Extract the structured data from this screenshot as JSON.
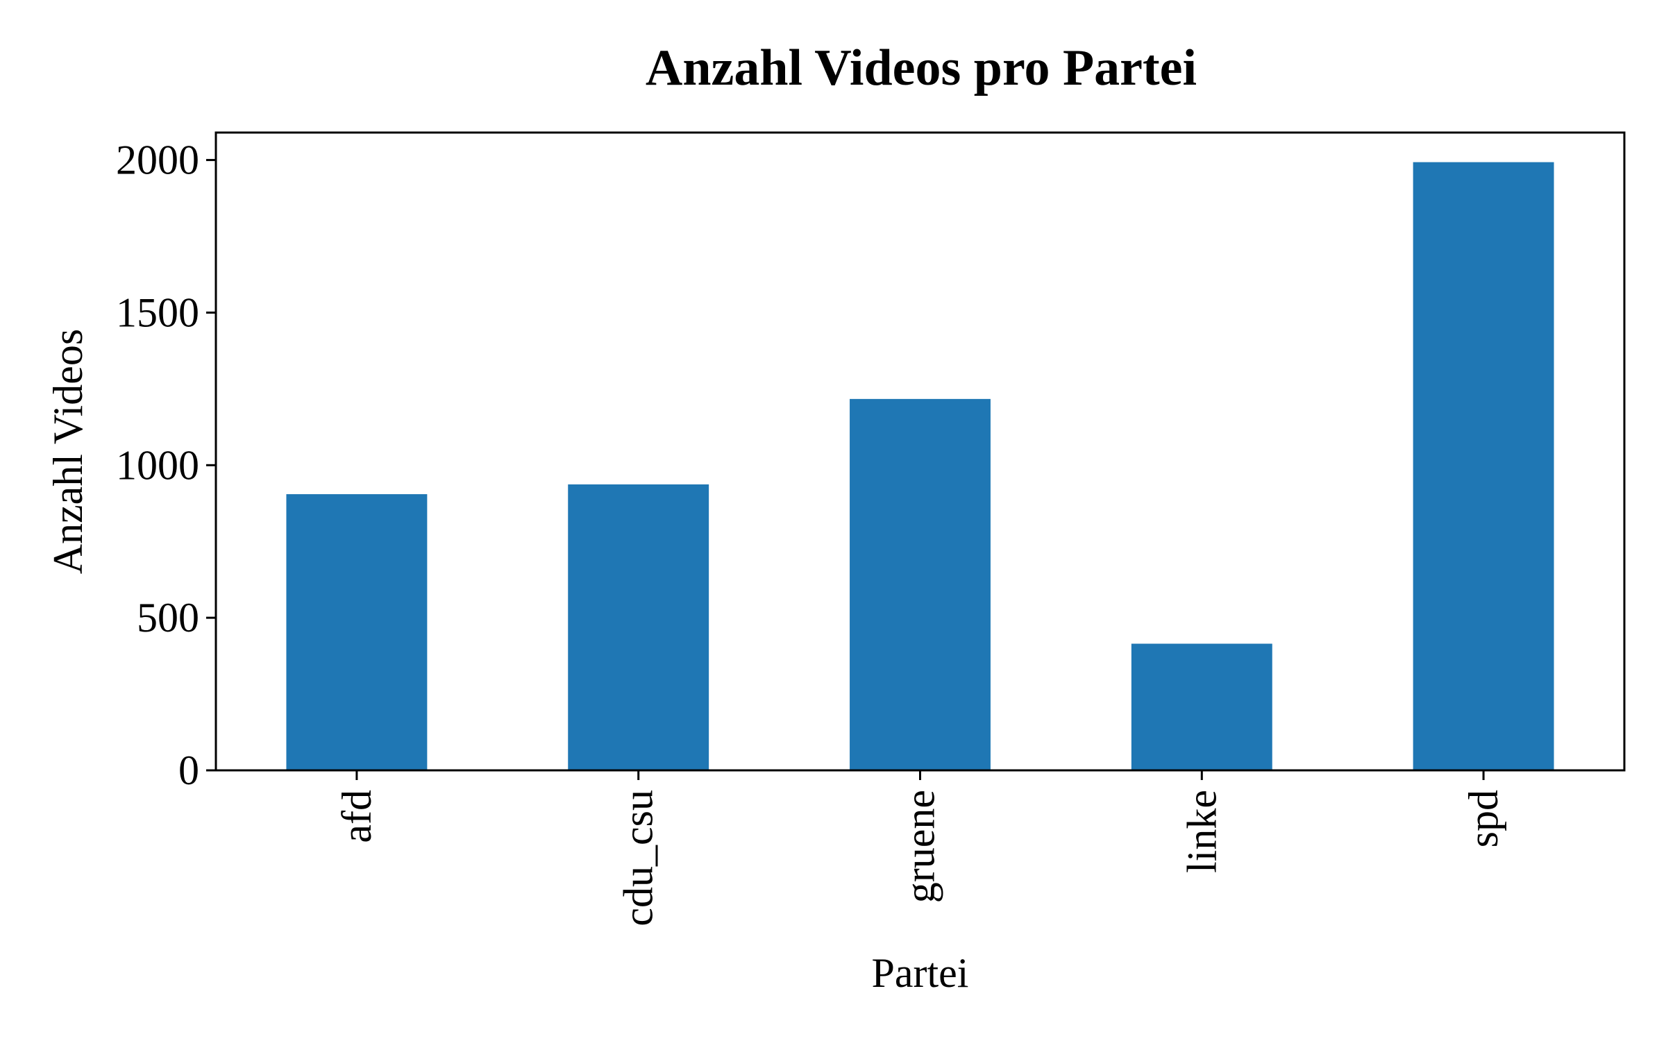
{
  "chart_data": {
    "type": "bar",
    "title": "Anzahl Videos pro Partei",
    "xlabel": "Partei",
    "ylabel": "Anzahl Videos",
    "categories": [
      "afd",
      "cdu_csu",
      "gruene",
      "linke",
      "spd"
    ],
    "values": [
      905,
      937,
      1217,
      415,
      1993
    ],
    "ylim": [
      0,
      2090
    ],
    "yticks": [
      0,
      500,
      1000,
      1500,
      2000
    ],
    "grid": false,
    "legend": "none",
    "x_tick_rotation": "vertical",
    "bar_color": "#1f77b4"
  }
}
